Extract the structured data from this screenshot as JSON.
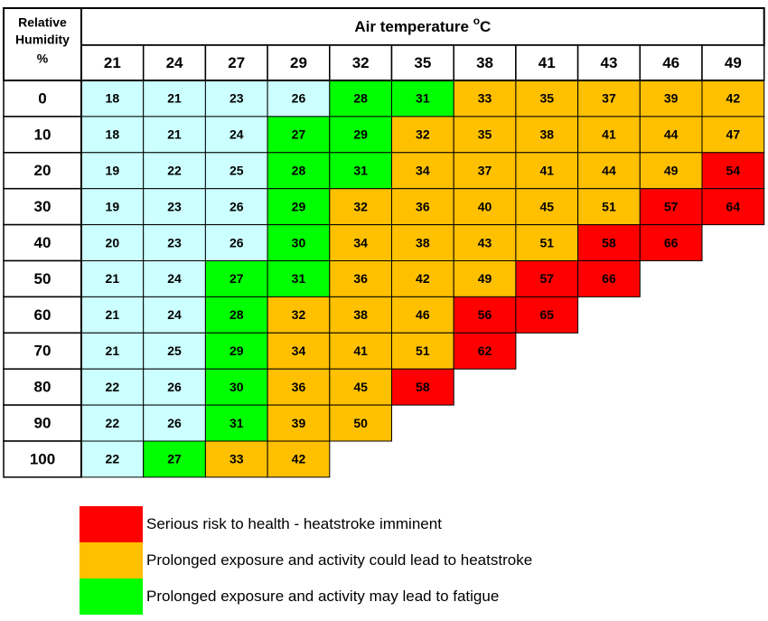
{
  "chart_data": {
    "type": "heatmap",
    "title": "Air temperature",
    "title_superscript": "o",
    "title_unit": "C",
    "row_header": [
      "Relative",
      "Humidity",
      "%"
    ],
    "x": [
      "21",
      "24",
      "27",
      "29",
      "32",
      "35",
      "38",
      "41",
      "43",
      "46",
      "49"
    ],
    "y": [
      "0",
      "10",
      "20",
      "30",
      "40",
      "50",
      "60",
      "70",
      "80",
      "90",
      "100"
    ],
    "values": [
      [
        18,
        21,
        23,
        26,
        28,
        31,
        33,
        35,
        37,
        39,
        42
      ],
      [
        18,
        21,
        24,
        27,
        29,
        32,
        35,
        38,
        41,
        44,
        47
      ],
      [
        19,
        22,
        25,
        28,
        31,
        34,
        37,
        41,
        44,
        49,
        54
      ],
      [
        19,
        23,
        26,
        29,
        32,
        36,
        40,
        45,
        51,
        57,
        64
      ],
      [
        20,
        23,
        26,
        30,
        34,
        38,
        43,
        51,
        58,
        66
      ],
      [
        21,
        24,
        27,
        31,
        36,
        42,
        49,
        57,
        66
      ],
      [
        21,
        24,
        28,
        32,
        38,
        46,
        56,
        65
      ],
      [
        21,
        25,
        29,
        34,
        41,
        51,
        62
      ],
      [
        22,
        26,
        30,
        36,
        45,
        58
      ],
      [
        22,
        26,
        31,
        39,
        50
      ],
      [
        22,
        27,
        33,
        42
      ]
    ],
    "categories": [
      [
        0,
        0,
        0,
        0,
        1,
        1,
        2,
        2,
        2,
        2,
        2
      ],
      [
        0,
        0,
        0,
        1,
        1,
        2,
        2,
        2,
        2,
        2,
        2
      ],
      [
        0,
        0,
        0,
        1,
        1,
        2,
        2,
        2,
        2,
        2,
        3
      ],
      [
        0,
        0,
        0,
        1,
        2,
        2,
        2,
        2,
        2,
        3,
        3
      ],
      [
        0,
        0,
        0,
        1,
        2,
        2,
        2,
        2,
        3,
        3
      ],
      [
        0,
        0,
        1,
        1,
        2,
        2,
        2,
        3,
        3
      ],
      [
        0,
        0,
        1,
        2,
        2,
        2,
        3,
        3
      ],
      [
        0,
        0,
        1,
        2,
        2,
        2,
        3
      ],
      [
        0,
        0,
        1,
        2,
        2,
        3
      ],
      [
        0,
        0,
        1,
        2,
        2
      ],
      [
        0,
        1,
        2,
        2
      ]
    ],
    "colors": [
      "#ccffff",
      "#00ff00",
      "#ffc000",
      "#ff0000"
    ],
    "grid": true
  },
  "legend": [
    {
      "color": "#ff0000",
      "label": "Serious risk to health - heatstroke imminent"
    },
    {
      "color": "#ffc000",
      "label": "Prolonged exposure and activity could lead to heatstroke"
    },
    {
      "color": "#00ff00",
      "label": "Prolonged exposure and activity may lead to fatigue"
    }
  ]
}
